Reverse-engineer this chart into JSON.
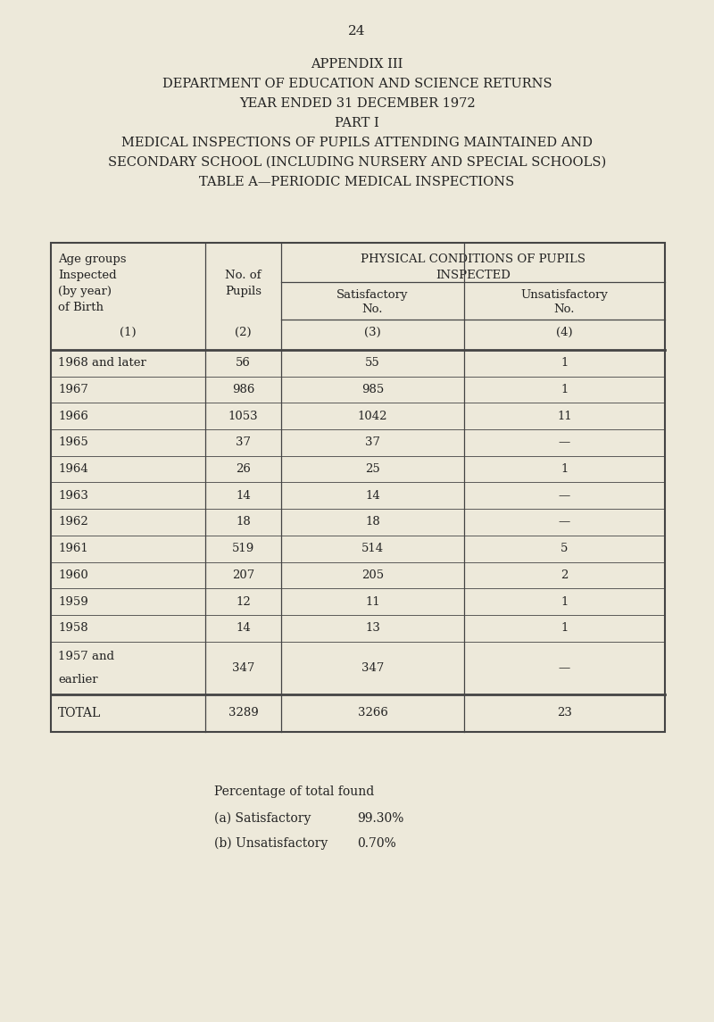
{
  "page_number": "24",
  "title_lines": [
    "APPENDIX III",
    "DEPARTMENT OF EDUCATION AND SCIENCE RETURNS",
    "YEAR ENDED 31 DECEMBER 1972",
    "PART I",
    "MEDICAL INSPECTIONS OF PUPILS ATTENDING MAINTAINED AND",
    "SECONDARY SCHOOL (INCLUDING NURSERY AND SPECIAL SCHOOLS)",
    "TABLE A—PERIODIC MEDICAL INSPECTIONS"
  ],
  "rows": [
    [
      "1968 and later",
      "56",
      "55",
      "1"
    ],
    [
      "1967",
      "986",
      "985",
      "1"
    ],
    [
      "1966",
      "1053",
      "1042",
      "11"
    ],
    [
      "1965",
      "37",
      "37",
      "—"
    ],
    [
      "1964",
      "26",
      "25",
      "1"
    ],
    [
      "1963",
      "14",
      "14",
      "—"
    ],
    [
      "1962",
      "18",
      "18",
      "—"
    ],
    [
      "1961",
      "519",
      "514",
      "5"
    ],
    [
      "1960",
      "207",
      "205",
      "2"
    ],
    [
      "1959",
      "12",
      "11",
      "1"
    ],
    [
      "1958",
      "14",
      "13",
      "1"
    ],
    [
      "1957 and\nearlier",
      "347",
      "347",
      "—"
    ]
  ],
  "total_row": [
    "TOTAL",
    "3289",
    "3266",
    "23"
  ],
  "bg_color": "#ede9da",
  "text_color": "#222222",
  "table_line_color": "#444444",
  "font_size_title": 10.5,
  "font_size_table": 9.5,
  "font_size_page": 11.0
}
